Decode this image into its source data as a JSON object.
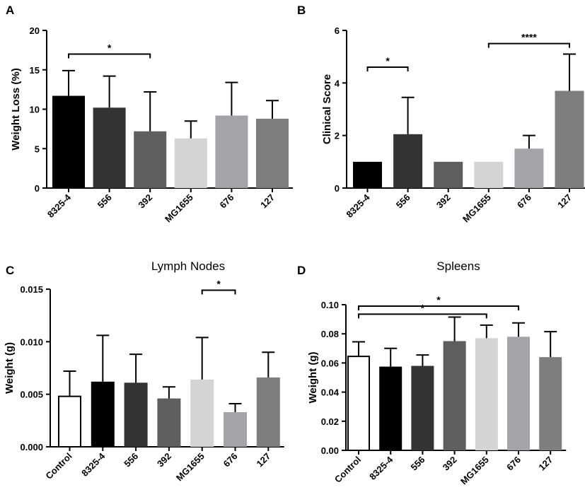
{
  "chart_data": [
    {
      "panel": "A",
      "type": "bar",
      "title": "",
      "ylabel": "Weight Loss (%)",
      "ylim": [
        0,
        20
      ],
      "yticks": [
        0,
        5,
        10,
        15,
        20
      ],
      "ytick_labels": [
        "0",
        "5",
        "10",
        "15",
        "20"
      ],
      "categories": [
        "8325-4",
        "556",
        "392",
        "MG1655",
        "676",
        "127"
      ],
      "values": [
        11.7,
        10.2,
        7.2,
        6.3,
        9.2,
        8.8
      ],
      "errors": [
        3.2,
        4.0,
        5.0,
        2.2,
        4.2,
        2.3
      ],
      "colors": [
        "#000000",
        "#333333",
        "#5e5e5e",
        "#d4d4d4",
        "#a4a4a8",
        "#7e7e7e"
      ],
      "outlined": [
        false,
        false,
        false,
        false,
        false,
        false
      ],
      "significance": [
        {
          "from": 0,
          "to": 2,
          "label": "*",
          "y": 17
        }
      ]
    },
    {
      "panel": "B",
      "type": "bar",
      "title": "",
      "ylabel": "Clinical  Score",
      "ylim": [
        0,
        6
      ],
      "yticks": [
        0,
        2,
        4,
        6
      ],
      "ytick_labels": [
        "0",
        "2",
        "4",
        "6"
      ],
      "categories": [
        "8325-4",
        "556",
        "392",
        "MG1655",
        "676",
        "127"
      ],
      "values": [
        1.0,
        2.05,
        1.0,
        1.0,
        1.5,
        3.7
      ],
      "errors": [
        0,
        1.4,
        0,
        0,
        0.5,
        1.4
      ],
      "colors": [
        "#000000",
        "#333333",
        "#5e5e5e",
        "#d4d4d4",
        "#a4a4a8",
        "#7e7e7e"
      ],
      "outlined": [
        false,
        false,
        false,
        false,
        false,
        false
      ],
      "significance": [
        {
          "from": 0,
          "to": 1,
          "label": "*",
          "y": 4.6
        },
        {
          "from": 3,
          "to": 5,
          "label": "****",
          "y": 5.5
        }
      ]
    },
    {
      "panel": "C",
      "type": "bar",
      "title": "Lymph  Nodes",
      "ylabel": "Weight (g)",
      "ylim": [
        0,
        0.015
      ],
      "yticks": [
        0,
        0.005,
        0.01,
        0.015
      ],
      "ytick_labels": [
        "0.000",
        "0.005",
        "0.010",
        "0.015"
      ],
      "categories": [
        "Control",
        "8325-4",
        "556",
        "392",
        "MG1655",
        "676",
        "127"
      ],
      "values": [
        0.0048,
        0.0062,
        0.0061,
        0.0046,
        0.0064,
        0.0033,
        0.0066
      ],
      "errors": [
        0.0024,
        0.0044,
        0.0027,
        0.0011,
        0.004,
        0.0008,
        0.0024
      ],
      "colors": [
        "#ffffff",
        "#000000",
        "#333333",
        "#5e5e5e",
        "#d4d4d4",
        "#a4a4a8",
        "#7e7e7e"
      ],
      "outlined": [
        true,
        false,
        false,
        false,
        false,
        false,
        false
      ],
      "significance": [
        {
          "from": 4,
          "to": 5,
          "label": "*",
          "y": 0.0149
        }
      ]
    },
    {
      "panel": "D",
      "type": "bar",
      "title": "Spleens",
      "ylabel": "Weight (g)",
      "ylim": [
        0,
        0.1
      ],
      "yticks": [
        0,
        0.02,
        0.04,
        0.06,
        0.08,
        0.1
      ],
      "ytick_labels": [
        "0.00",
        "0.02",
        "0.04",
        "0.06",
        "0.08",
        "0.10"
      ],
      "categories": [
        "Control",
        "8325-4",
        "556",
        "392",
        "MG1655",
        "676",
        "127"
      ],
      "values": [
        0.0645,
        0.0575,
        0.058,
        0.075,
        0.077,
        0.078,
        0.064
      ],
      "errors": [
        0.01,
        0.0125,
        0.0075,
        0.0165,
        0.009,
        0.0095,
        0.0175
      ],
      "colors": [
        "#ffffff",
        "#000000",
        "#333333",
        "#5e5e5e",
        "#d4d4d4",
        "#a4a4a8",
        "#7e7e7e"
      ],
      "outlined": [
        true,
        false,
        false,
        false,
        false,
        false,
        false
      ],
      "significance": [
        {
          "from": 0,
          "to": 5,
          "label": "*",
          "y": 0.099
        },
        {
          "from": 0,
          "to": 4,
          "label": "*",
          "y": 0.0935
        }
      ]
    }
  ]
}
